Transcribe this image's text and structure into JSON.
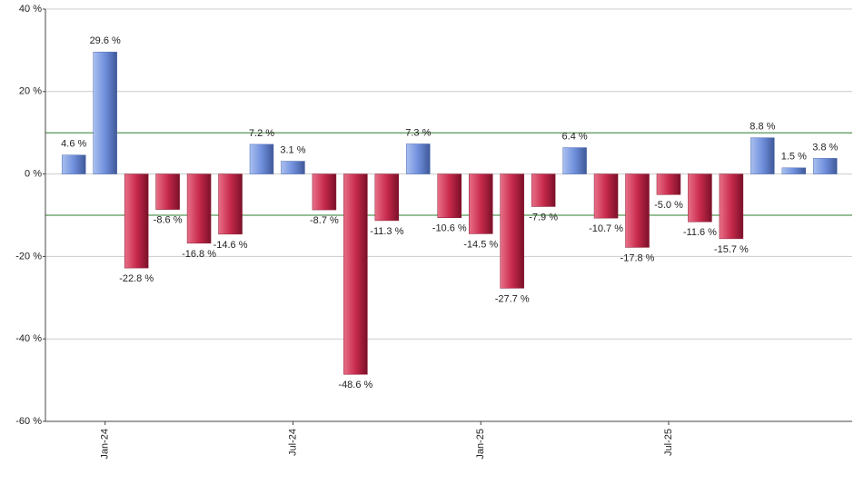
{
  "chart_data": {
    "type": "bar",
    "categories": [
      null,
      "Jan-24",
      null,
      null,
      null,
      null,
      null,
      "Jul-24",
      null,
      null,
      null,
      null,
      null,
      "Jan-25",
      null,
      null,
      null,
      null,
      null,
      "Jul-25",
      null,
      null,
      null,
      null,
      null
    ],
    "values": [
      4.6,
      29.6,
      -22.8,
      -8.6,
      -16.8,
      -14.6,
      7.2,
      3.1,
      -8.7,
      -48.6,
      -11.3,
      7.3,
      -10.6,
      -14.5,
      -27.7,
      -7.9,
      6.4,
      -10.7,
      -17.8,
      -5.0,
      -11.6,
      -15.7,
      8.8,
      1.5,
      3.8
    ],
    "value_labels": [
      "4.6 %",
      "29.6 %",
      "-22.8 %",
      "-8.6 %",
      "-16.8 %",
      "-14.6 %",
      "7.2 %",
      "3.1 %",
      "-8.7 %",
      "-48.6 %",
      "-11.3 %",
      "7.3 %",
      "-10.6 %",
      "-14.5 %",
      "-27.7 %",
      "-7.9 %",
      "6.4 %",
      "-10.7 %",
      "-17.8 %",
      "-5.0 %",
      "-11.6 %",
      "-15.7 %",
      "8.8 %",
      "1.5 %",
      "3.8 %"
    ],
    "positive_color": "#6f8fdc",
    "negative_color": "#c82a4c",
    "ylim": [
      -60,
      40
    ],
    "yticks": [
      {
        "value": -60,
        "label": "-60 %"
      },
      {
        "value": -40,
        "label": "-40 %"
      },
      {
        "value": -20,
        "label": "-20 %"
      },
      {
        "value": 0,
        "label": "0 %"
      },
      {
        "value": 20,
        "label": "20 %"
      },
      {
        "value": 40,
        "label": "40 %"
      }
    ],
    "grid": true,
    "reference_lines": [
      10,
      -10
    ],
    "reference_color": "#2e7d2e"
  }
}
